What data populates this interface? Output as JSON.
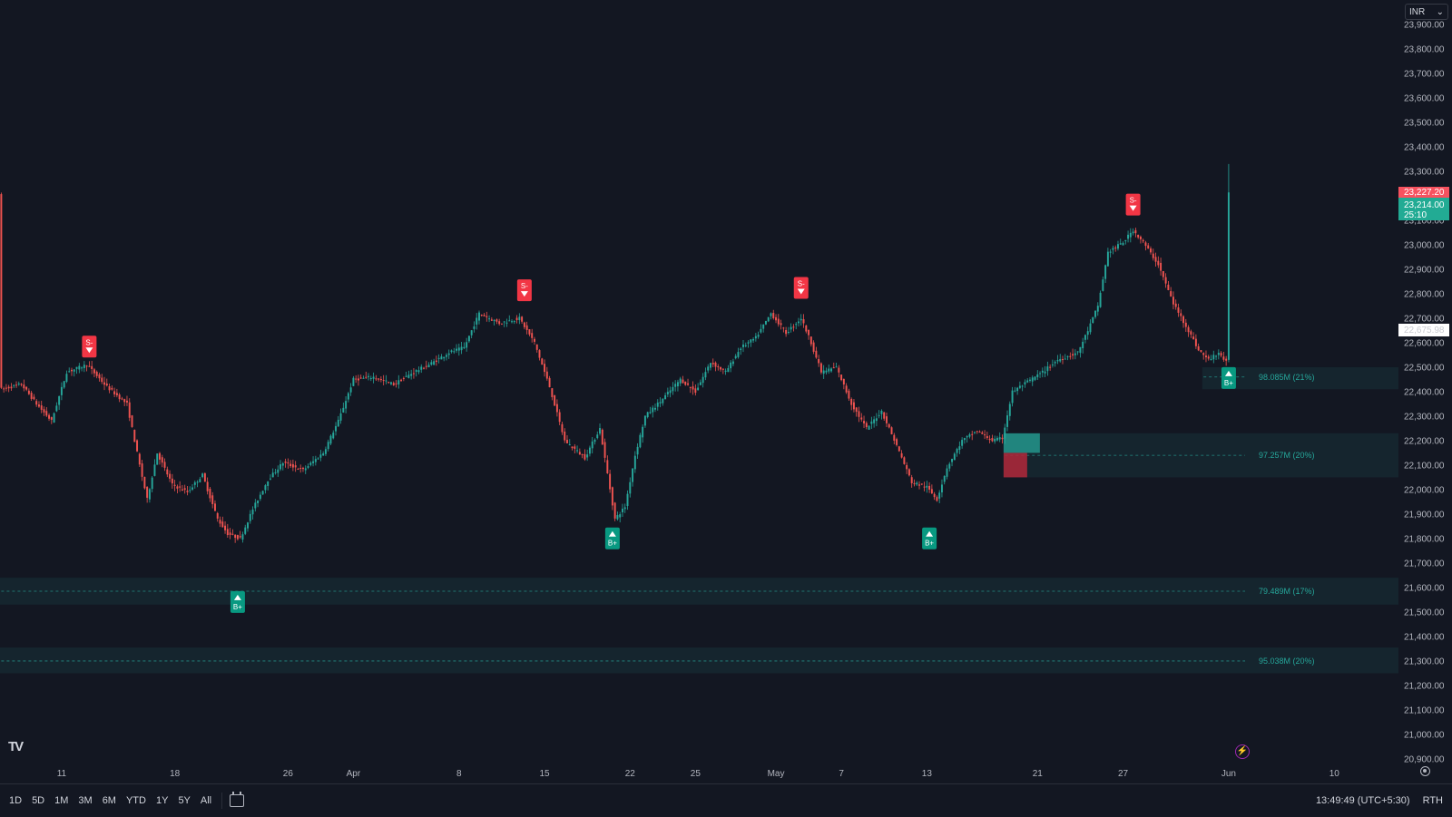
{
  "currency": "INR",
  "bottom_bar": {
    "ranges": [
      "1D",
      "5D",
      "1M",
      "3M",
      "6M",
      "YTD",
      "1Y",
      "5Y",
      "All"
    ],
    "clock": "13:49:49 (UTC+5:30)",
    "session": "RTH"
  },
  "price_badges": {
    "high_value": "23,227.20",
    "last_value": "23,214.00",
    "countdown": "25:10",
    "marker_value": "22,675.98"
  },
  "colors": {
    "background": "#131722",
    "bull": "#26a69a",
    "bear": "#ef5350",
    "signal_sell": "#f23645",
    "signal_buy": "#089981",
    "badge_high": "#f7525f",
    "badge_last": "#22ab94"
  },
  "icons": [
    "tradingview-logo-icon",
    "chevron-down-icon",
    "calendar-goto-icon",
    "lightning-icon",
    "settings-icon"
  ],
  "chart_data": {
    "type": "candlestick",
    "title": "",
    "price_axis": {
      "ticks": [
        20900,
        21000,
        21100,
        21200,
        21300,
        21400,
        21500,
        21600,
        21700,
        21800,
        21900,
        22000,
        22100,
        22200,
        22300,
        22400,
        22500,
        22600,
        22700,
        22800,
        22900,
        23000,
        23100,
        23200,
        23300,
        23400,
        23500,
        23600,
        23700,
        23800,
        23900
      ],
      "tick_labels": [
        "20,900.00",
        "21,000.00",
        "21,100.00",
        "21,200.00",
        "21,300.00",
        "21,400.00",
        "21,500.00",
        "21,600.00",
        "21,700.00",
        "21,800.00",
        "21,900.00",
        "22,000.00",
        "22,100.00",
        "22,200.00",
        "22,300.00",
        "22,400.00",
        "22,500.00",
        "22,600.00",
        "22,700.00",
        "22,800.00",
        "22,900.00",
        "23,000.00",
        "23,100.00",
        "23,200.00",
        "23,300.00",
        "23,400.00",
        "23,500.00",
        "23,600.00",
        "23,700.00",
        "23,800.00",
        "23,900.00"
      ],
      "range": [
        20870,
        24000
      ]
    },
    "time_axis": {
      "labels": [
        "11",
        "18",
        "26",
        "Apr",
        "8",
        "15",
        "22",
        "25",
        "May",
        "7",
        "13",
        "21",
        "27",
        "Jun",
        "10"
      ],
      "label_bars": [
        24,
        69,
        114,
        140,
        182,
        216,
        250,
        276,
        308,
        334,
        368,
        412,
        446,
        488,
        530
      ],
      "bar_count": 489,
      "chart_extent_bars": 556
    },
    "price_path": [
      [
        0,
        22410
      ],
      [
        8,
        22430
      ],
      [
        14,
        22350
      ],
      [
        20,
        22280
      ],
      [
        26,
        22480
      ],
      [
        34,
        22510
      ],
      [
        42,
        22420
      ],
      [
        50,
        22350
      ],
      [
        55,
        22100
      ],
      [
        58,
        21960
      ],
      [
        62,
        22150
      ],
      [
        68,
        22020
      ],
      [
        74,
        21990
      ],
      [
        80,
        22060
      ],
      [
        86,
        21880
      ],
      [
        90,
        21820
      ],
      [
        95,
        21800
      ],
      [
        100,
        21920
      ],
      [
        106,
        22040
      ],
      [
        112,
        22110
      ],
      [
        120,
        22080
      ],
      [
        128,
        22150
      ],
      [
        134,
        22280
      ],
      [
        140,
        22450
      ],
      [
        148,
        22460
      ],
      [
        156,
        22430
      ],
      [
        164,
        22480
      ],
      [
        170,
        22510
      ],
      [
        178,
        22560
      ],
      [
        184,
        22580
      ],
      [
        190,
        22720
      ],
      [
        198,
        22680
      ],
      [
        206,
        22700
      ],
      [
        212,
        22600
      ],
      [
        218,
        22420
      ],
      [
        224,
        22200
      ],
      [
        232,
        22130
      ],
      [
        238,
        22250
      ],
      [
        244,
        21880
      ],
      [
        248,
        21930
      ],
      [
        252,
        22140
      ],
      [
        256,
        22300
      ],
      [
        262,
        22360
      ],
      [
        270,
        22450
      ],
      [
        276,
        22400
      ],
      [
        282,
        22520
      ],
      [
        288,
        22480
      ],
      [
        294,
        22580
      ],
      [
        300,
        22620
      ],
      [
        306,
        22720
      ],
      [
        312,
        22640
      ],
      [
        318,
        22700
      ],
      [
        322,
        22600
      ],
      [
        326,
        22480
      ],
      [
        332,
        22500
      ],
      [
        338,
        22350
      ],
      [
        344,
        22250
      ],
      [
        350,
        22320
      ],
      [
        356,
        22180
      ],
      [
        362,
        22030
      ],
      [
        368,
        22010
      ],
      [
        372,
        21960
      ],
      [
        376,
        22090
      ],
      [
        382,
        22200
      ],
      [
        388,
        22240
      ],
      [
        394,
        22200
      ],
      [
        398,
        22210
      ],
      [
        402,
        22400
      ],
      [
        408,
        22440
      ],
      [
        414,
        22480
      ],
      [
        420,
        22530
      ],
      [
        428,
        22560
      ],
      [
        432,
        22650
      ],
      [
        436,
        22750
      ],
      [
        440,
        22970
      ],
      [
        446,
        23010
      ],
      [
        450,
        23060
      ],
      [
        454,
        23010
      ],
      [
        460,
        22920
      ],
      [
        466,
        22760
      ],
      [
        472,
        22650
      ],
      [
        476,
        22570
      ],
      [
        480,
        22530
      ],
      [
        484,
        22560
      ],
      [
        487,
        22520
      ],
      [
        488,
        23214
      ]
    ],
    "signals": [
      {
        "label": "S-",
        "side": "sell",
        "bar": 35,
        "price": 22510
      },
      {
        "label": "S-",
        "side": "sell",
        "bar": 208,
        "price": 22740
      },
      {
        "label": "S-",
        "side": "sell",
        "bar": 318,
        "price": 22750
      },
      {
        "label": "S-",
        "side": "sell",
        "bar": 450,
        "price": 23090
      },
      {
        "label": "B+",
        "side": "buy",
        "bar": 94,
        "price": 21600
      },
      {
        "label": "B+",
        "side": "buy",
        "bar": 243,
        "price": 21860
      },
      {
        "label": "B+",
        "side": "buy",
        "bar": 369,
        "price": 21860
      },
      {
        "label": "B+",
        "side": "buy",
        "bar": 488,
        "price": 22515
      }
    ],
    "volume_zones": [
      {
        "label": "98.085M (21%)",
        "top": 22500,
        "bottom": 22410,
        "start_bar": 478,
        "level": 22460
      },
      {
        "label": "97.257M (20%)",
        "top": 22230,
        "bottom": 22050,
        "start_bar": 399,
        "level": 22140
      },
      {
        "label": "79.489M (17%)",
        "top": 21640,
        "bottom": 21530,
        "start_bar": 0,
        "level": 21585
      },
      {
        "label": "95.038M (20%)",
        "top": 21355,
        "bottom": 21250,
        "start_bar": 0,
        "level": 21300
      }
    ],
    "grid": false,
    "legend": "none"
  }
}
